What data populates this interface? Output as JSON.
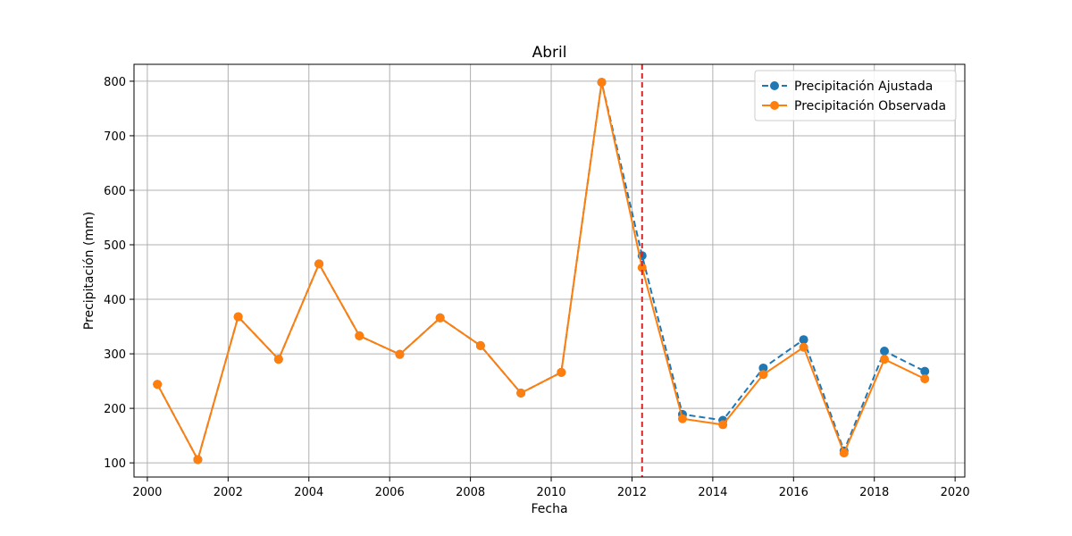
{
  "chart_data": {
    "type": "line",
    "title": "Abril",
    "xlabel": "Fecha",
    "ylabel": "Precipitación (mm)",
    "xlim": [
      1999.67,
      2020.24
    ],
    "ylim": [
      74,
      831
    ],
    "x_ticks": [
      2000,
      2002,
      2004,
      2006,
      2008,
      2010,
      2012,
      2014,
      2016,
      2018,
      2020
    ],
    "y_ticks": [
      100,
      200,
      300,
      400,
      500,
      600,
      700,
      800
    ],
    "grid": true,
    "legend_position": "upper right",
    "x": [
      2000.25,
      2001.25,
      2002.25,
      2003.25,
      2004.25,
      2005.25,
      2006.25,
      2007.25,
      2008.25,
      2009.25,
      2010.25,
      2011.25,
      2012.25,
      2013.25,
      2014.25,
      2015.25,
      2016.25,
      2017.25,
      2018.25,
      2019.25
    ],
    "series": [
      {
        "name": "Precipitación Ajustada",
        "color": "#1f77b4",
        "style": "dashed",
        "values": [
          244,
          106,
          368,
          290,
          465,
          333,
          299,
          366,
          315,
          228,
          266,
          798,
          480,
          189,
          178,
          274,
          326,
          122,
          305,
          268
        ]
      },
      {
        "name": "Precipitación Observada",
        "color": "#ff7f0e",
        "style": "solid",
        "values": [
          244,
          106,
          368,
          290,
          465,
          333,
          299,
          366,
          315,
          228,
          266,
          798,
          458,
          181,
          170,
          262,
          312,
          118,
          290,
          254
        ]
      }
    ],
    "vline": {
      "x": 2012.25,
      "color": "#d62728",
      "style": "dashed"
    }
  }
}
